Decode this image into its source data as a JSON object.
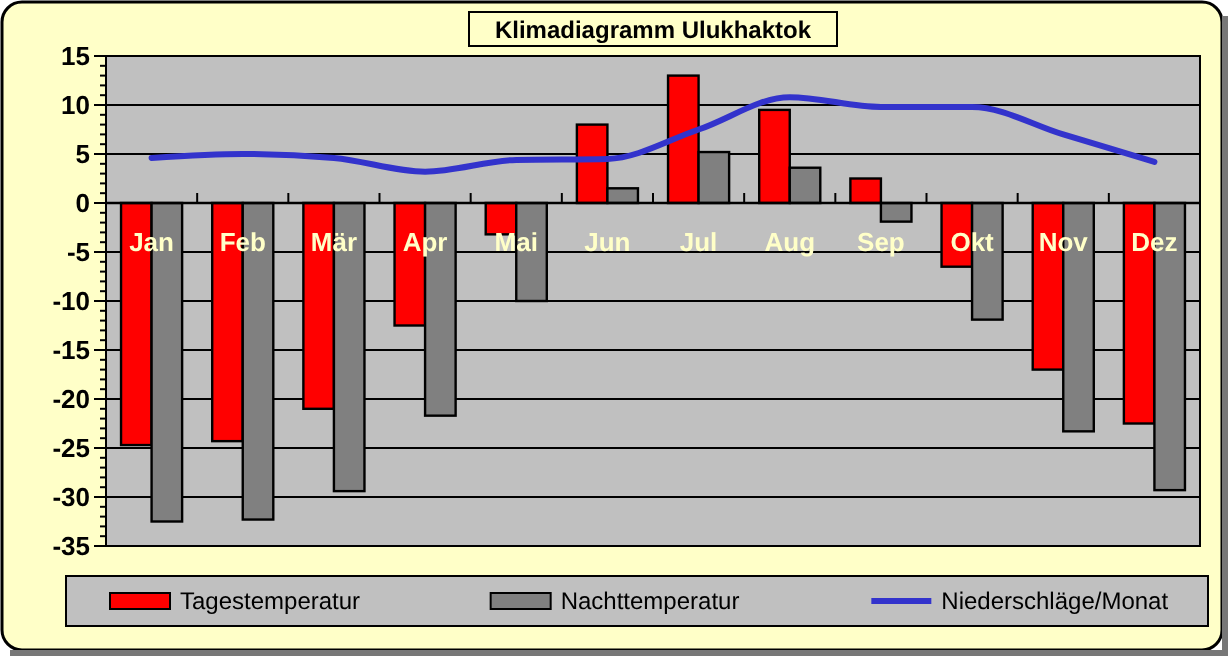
{
  "chart_data": {
    "type": "bar",
    "title": "Klimadiagramm Ulukhaktok",
    "categories": [
      "Jan",
      "Feb",
      "Mär",
      "Apr",
      "Mai",
      "Jun",
      "Jul",
      "Aug",
      "Sep",
      "Okt",
      "Nov",
      "Dez"
    ],
    "series": [
      {
        "name": "Tagestemperatur",
        "color": "#ff0000",
        "values": [
          -24.7,
          -24.3,
          -21,
          -12.5,
          -3.2,
          8,
          13,
          9.5,
          2.5,
          -6.5,
          -17,
          -22.5
        ]
      },
      {
        "name": "Nachttemperatur",
        "color": "#808080",
        "values": [
          -32.5,
          -32.3,
          -29.4,
          -21.7,
          -10,
          1.5,
          5.2,
          3.6,
          -1.9,
          -11.9,
          -23.3,
          -29.3
        ]
      },
      {
        "name": "Niederschläge/Monat",
        "type": "line",
        "color": "#3333cc",
        "values": [
          4.6,
          5,
          4.6,
          3.2,
          4.4,
          4.5,
          7.5,
          10.8,
          9.8,
          9.8,
          7,
          4.2
        ]
      }
    ],
    "ylim": [
      -35,
      15
    ],
    "yticks": [
      -35,
      -30,
      -25,
      -20,
      -15,
      -10,
      -5,
      0,
      5,
      10,
      15
    ],
    "grid": "y",
    "legend": "bottom",
    "marker": "none",
    "line_style": "solid"
  }
}
